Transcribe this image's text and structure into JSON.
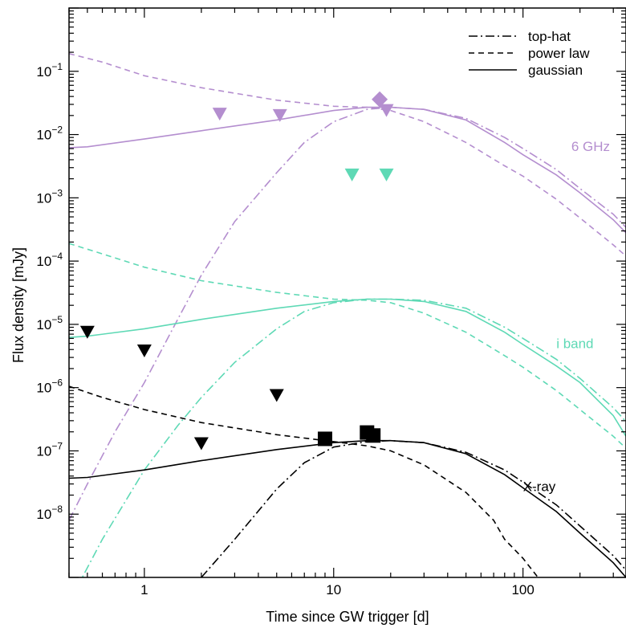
{
  "chart_data": {
    "type": "line",
    "x_scale": "log",
    "y_scale": "log",
    "xlim": [
      0.4,
      350
    ],
    "ylim": [
      1e-09,
      1
    ],
    "xlabel": "Time since GW trigger [d]",
    "ylabel": "Flux density [mJy]",
    "x_ticks": [
      {
        "value": 1,
        "label": "1"
      },
      {
        "value": 10,
        "label": "10"
      },
      {
        "value": 100,
        "label": "100"
      }
    ],
    "y_ticks": [
      {
        "exp": -1,
        "label_base": "10",
        "label_exp": "−1"
      },
      {
        "exp": -2,
        "label_base": "10",
        "label_exp": "−2"
      },
      {
        "exp": -3,
        "label_base": "10",
        "label_exp": "−3"
      },
      {
        "exp": -4,
        "label_base": "10",
        "label_exp": "−4"
      },
      {
        "exp": -5,
        "label_base": "10",
        "label_exp": "−5"
      },
      {
        "exp": -6,
        "label_base": "10",
        "label_exp": "−6"
      },
      {
        "exp": -7,
        "label_base": "10",
        "label_exp": "−7"
      },
      {
        "exp": -8,
        "label_base": "10",
        "label_exp": "−8"
      }
    ],
    "grid": false,
    "legend": {
      "position": "top-right",
      "entries": [
        {
          "label": "top-hat",
          "style": "dashdot"
        },
        {
          "label": "power law",
          "style": "dashed"
        },
        {
          "label": "gaussian",
          "style": "solid"
        }
      ]
    },
    "bands": [
      {
        "label": "6 GHz",
        "color": "#b48ecf",
        "curves": [
          {
            "model": "gaussian",
            "style": "solid",
            "points": [
              [
                0.4,
                0.0062
              ],
              [
                0.5,
                0.0064
              ],
              [
                1,
                0.0085
              ],
              [
                2,
                0.0115
              ],
              [
                5,
                0.017
              ],
              [
                10,
                0.024
              ],
              [
                15,
                0.027
              ],
              [
                20,
                0.027
              ],
              [
                30,
                0.025
              ],
              [
                50,
                0.017
              ],
              [
                80,
                0.0075
              ],
              [
                100,
                0.0048
              ],
              [
                150,
                0.0023
              ],
              [
                200,
                0.0012
              ],
              [
                300,
                0.00045
              ],
              [
                350,
                0.00028
              ]
            ]
          },
          {
            "model": "power law",
            "style": "dashed",
            "points": [
              [
                0.4,
                0.19
              ],
              [
                0.6,
                0.14
              ],
              [
                1,
                0.085
              ],
              [
                2,
                0.055
              ],
              [
                5,
                0.035
              ],
              [
                10,
                0.028
              ],
              [
                15,
                0.027
              ],
              [
                20,
                0.024
              ],
              [
                30,
                0.016
              ],
              [
                50,
                0.0075
              ],
              [
                80,
                0.0032
              ],
              [
                100,
                0.0022
              ],
              [
                150,
                0.00095
              ],
              [
                200,
                0.00048
              ],
              [
                300,
                0.00018
              ],
              [
                350,
                0.00012
              ]
            ]
          },
          {
            "model": "top-hat",
            "style": "dashdot",
            "points": [
              [
                0.4,
                8e-09
              ],
              [
                0.5,
                3e-08
              ],
              [
                0.7,
                2e-07
              ],
              [
                1,
                1.2e-06
              ],
              [
                1.5,
                1.2e-05
              ],
              [
                2,
                6e-05
              ],
              [
                3,
                0.00042
              ],
              [
                5,
                0.0025
              ],
              [
                7,
                0.0075
              ],
              [
                10,
                0.016
              ],
              [
                15,
                0.025
              ],
              [
                20,
                0.027
              ],
              [
                30,
                0.025
              ],
              [
                50,
                0.018
              ],
              [
                80,
                0.009
              ],
              [
                100,
                0.006
              ],
              [
                150,
                0.0028
              ],
              [
                200,
                0.0014
              ],
              [
                300,
                0.00055
              ],
              [
                350,
                0.00034
              ]
            ]
          }
        ],
        "points": [
          {
            "marker": "triangle-down",
            "x": 2.5,
            "y": 0.021
          },
          {
            "marker": "triangle-down",
            "x": 5.2,
            "y": 0.02
          },
          {
            "marker": "triangle-down",
            "x": 19,
            "y": 0.024
          },
          {
            "marker": "diamond",
            "x": 17.5,
            "y": 0.036
          }
        ]
      },
      {
        "label": "i band",
        "color": "#5ed9b5",
        "curves": [
          {
            "model": "gaussian",
            "style": "solid",
            "points": [
              [
                0.4,
                6.2e-06
              ],
              [
                0.5,
                6.5e-06
              ],
              [
                1,
                8.5e-06
              ],
              [
                2,
                1.2e-05
              ],
              [
                5,
                1.8e-05
              ],
              [
                10,
                2.3e-05
              ],
              [
                15,
                2.5e-05
              ],
              [
                20,
                2.5e-05
              ],
              [
                30,
                2.3e-05
              ],
              [
                50,
                1.6e-05
              ],
              [
                80,
                7.5e-06
              ],
              [
                100,
                4.8e-06
              ],
              [
                150,
                2.2e-06
              ],
              [
                200,
                1.2e-06
              ],
              [
                300,
                3.6e-07
              ],
              [
                350,
                1.7e-07
              ]
            ]
          },
          {
            "model": "power law",
            "style": "dashed",
            "points": [
              [
                0.4,
                0.00019
              ],
              [
                0.6,
                0.00013
              ],
              [
                1,
                8e-05
              ],
              [
                2,
                4.9e-05
              ],
              [
                5,
                3.2e-05
              ],
              [
                10,
                2.5e-05
              ],
              [
                15,
                2.4e-05
              ],
              [
                20,
                2.2e-05
              ],
              [
                30,
                1.5e-05
              ],
              [
                50,
                7.5e-06
              ],
              [
                80,
                3.2e-06
              ],
              [
                100,
                2.1e-06
              ],
              [
                150,
                9e-07
              ],
              [
                200,
                4.5e-07
              ],
              [
                300,
                1.7e-07
              ],
              [
                350,
                1.1e-07
              ]
            ]
          },
          {
            "model": "top-hat",
            "style": "dashdot",
            "points": [
              [
                0.4,
                4e-10
              ],
              [
                0.6,
                4e-09
              ],
              [
                1,
                5e-08
              ],
              [
                1.5,
                2.5e-07
              ],
              [
                2,
                7e-07
              ],
              [
                3,
                2.5e-06
              ],
              [
                5,
                8.5e-06
              ],
              [
                7,
                1.6e-05
              ],
              [
                10,
                2.2e-05
              ],
              [
                15,
                2.5e-05
              ],
              [
                20,
                2.5e-05
              ],
              [
                30,
                2.4e-05
              ],
              [
                50,
                1.8e-05
              ],
              [
                80,
                9e-06
              ],
              [
                100,
                6e-06
              ],
              [
                150,
                2.8e-06
              ],
              [
                200,
                1.4e-06
              ],
              [
                300,
                4.8e-07
              ],
              [
                350,
                2.9e-07
              ]
            ]
          }
        ],
        "points": [
          {
            "marker": "triangle-down",
            "x": 12.5,
            "y": 0.0023
          },
          {
            "marker": "triangle-down",
            "x": 19,
            "y": 0.0023
          }
        ]
      },
      {
        "label": "X-ray",
        "color": "#000000",
        "curves": [
          {
            "model": "gaussian",
            "style": "solid",
            "points": [
              [
                0.4,
                3.7e-08
              ],
              [
                0.5,
                3.8e-08
              ],
              [
                1,
                5e-08
              ],
              [
                2,
                7e-08
              ],
              [
                5,
                1.05e-07
              ],
              [
                10,
                1.35e-07
              ],
              [
                15,
                1.45e-07
              ],
              [
                20,
                1.45e-07
              ],
              [
                30,
                1.35e-07
              ],
              [
                50,
                9e-08
              ],
              [
                80,
                4.2e-08
              ],
              [
                100,
                2.6e-08
              ],
              [
                150,
                1.1e-08
              ],
              [
                200,
                5e-09
              ],
              [
                300,
                1.7e-09
              ],
              [
                350,
                1e-09
              ]
            ]
          },
          {
            "model": "power law",
            "style": "dashed",
            "points": [
              [
                0.4,
                1.05e-06
              ],
              [
                0.6,
                7e-07
              ],
              [
                1,
                4.5e-07
              ],
              [
                2,
                2.8e-07
              ],
              [
                5,
                1.8e-07
              ],
              [
                10,
                1.4e-07
              ],
              [
                15,
                1.2e-07
              ],
              [
                20,
                1e-07
              ],
              [
                30,
                6e-08
              ],
              [
                50,
                2.2e-08
              ],
              [
                70,
                8e-09
              ],
              [
                80,
                4e-09
              ],
              [
                100,
                2e-09
              ],
              [
                120,
                1e-09
              ]
            ]
          },
          {
            "model": "top-hat",
            "style": "dashdot",
            "points": [
              [
                2,
                1e-09
              ],
              [
                3,
                4e-09
              ],
              [
                5,
                2.5e-08
              ],
              [
                7,
                6.5e-08
              ],
              [
                10,
                1.15e-07
              ],
              [
                15,
                1.4e-07
              ],
              [
                20,
                1.45e-07
              ],
              [
                30,
                1.35e-07
              ],
              [
                50,
                9.5e-08
              ],
              [
                80,
                5e-08
              ],
              [
                100,
                3.2e-08
              ],
              [
                150,
                1.4e-08
              ],
              [
                200,
                6.5e-09
              ],
              [
                300,
                2.2e-09
              ],
              [
                350,
                1.3e-09
              ]
            ]
          }
        ],
        "points": [
          {
            "marker": "triangle-down",
            "x": 0.5,
            "y": 7.5e-06
          },
          {
            "marker": "triangle-down",
            "x": 1.0,
            "y": 3.8e-06
          },
          {
            "marker": "triangle-down",
            "x": 2.0,
            "y": 1.3e-07
          },
          {
            "marker": "triangle-down",
            "x": 5.0,
            "y": 7.5e-07
          },
          {
            "marker": "square",
            "x": 9,
            "y": 1.55e-07
          },
          {
            "marker": "square",
            "x": 15,
            "y": 1.95e-07
          },
          {
            "marker": "square",
            "x": 16.2,
            "y": 1.75e-07
          }
        ]
      }
    ]
  }
}
